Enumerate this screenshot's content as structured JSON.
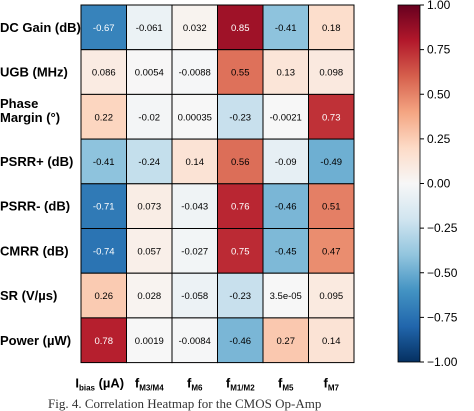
{
  "chart_data": {
    "type": "heatmap",
    "title": "",
    "rows": [
      "DC Gain (dB)",
      "UGB (MHz)",
      "Phase Margin (°)",
      "PSRR+ (dB)",
      "PSRR- (dB)",
      "CMRR (dB)",
      "SR (V/µs)",
      "Power (µW)"
    ],
    "columns": [
      {
        "main": "I",
        "sub": "bias",
        "suffix": " (µA)"
      },
      {
        "main": "f",
        "sub": "M3/M4",
        "suffix": ""
      },
      {
        "main": "f",
        "sub": "M6",
        "suffix": ""
      },
      {
        "main": "f",
        "sub": "M1/M2",
        "suffix": ""
      },
      {
        "main": "f",
        "sub": "M5",
        "suffix": ""
      },
      {
        "main": "f",
        "sub": "M7",
        "suffix": ""
      }
    ],
    "values": [
      [
        -0.67,
        -0.061,
        0.032,
        0.85,
        -0.41,
        0.18
      ],
      [
        0.086,
        0.0054,
        -0.0088,
        0.55,
        0.13,
        0.098
      ],
      [
        0.22,
        -0.02,
        0.00035,
        -0.23,
        -0.0021,
        0.73
      ],
      [
        -0.41,
        -0.24,
        0.14,
        0.56,
        -0.09,
        -0.49
      ],
      [
        -0.71,
        0.073,
        -0.043,
        0.76,
        -0.46,
        0.51
      ],
      [
        -0.74,
        0.057,
        -0.027,
        0.75,
        -0.45,
        0.47
      ],
      [
        0.26,
        0.028,
        -0.058,
        -0.23,
        3.5e-05,
        0.095
      ],
      [
        0.78,
        0.0019,
        -0.0084,
        -0.46,
        0.27,
        0.14
      ]
    ],
    "labels": [
      [
        "-0.67",
        "-0.061",
        "0.032",
        "0.85",
        "-0.41",
        "0.18"
      ],
      [
        "0.086",
        "0.0054",
        "-0.0088",
        "0.55",
        "0.13",
        "0.098"
      ],
      [
        "0.22",
        "-0.02",
        "0.00035",
        "-0.23",
        "-0.0021",
        "0.73"
      ],
      [
        "-0.41",
        "-0.24",
        "0.14",
        "0.56",
        "-0.09",
        "-0.49"
      ],
      [
        "-0.71",
        "0.073",
        "-0.043",
        "0.76",
        "-0.46",
        "0.51"
      ],
      [
        "-0.74",
        "0.057",
        "-0.027",
        "0.75",
        "-0.45",
        "0.47"
      ],
      [
        "0.26",
        "0.028",
        "-0.058",
        "-0.23",
        "3.5e-05",
        "0.095"
      ],
      [
        "0.78",
        "0.0019",
        "-0.0084",
        "-0.46",
        "0.27",
        "0.14"
      ]
    ],
    "colorbar": {
      "range": [
        -1,
        1
      ],
      "ticks": [
        1.0,
        0.75,
        0.5,
        0.25,
        0.0,
        -0.25,
        -0.5,
        -0.75,
        -1.0
      ],
      "tick_labels": [
        "1.00",
        "0.75",
        "0.50",
        "0.25",
        "0.00",
        "−0.25",
        "−0.50",
        "−0.75",
        "−1.00"
      ],
      "colormap": [
        "#053061",
        "#2166ac",
        "#4393c3",
        "#92c5de",
        "#d1e5f0",
        "#f7f7f7",
        "#fddbc7",
        "#f4a582",
        "#d6604d",
        "#b2182b",
        "#67001f"
      ]
    }
  },
  "caption": "Fig. 4.   Correlation Heatmap for the CMOS Op-Amp"
}
